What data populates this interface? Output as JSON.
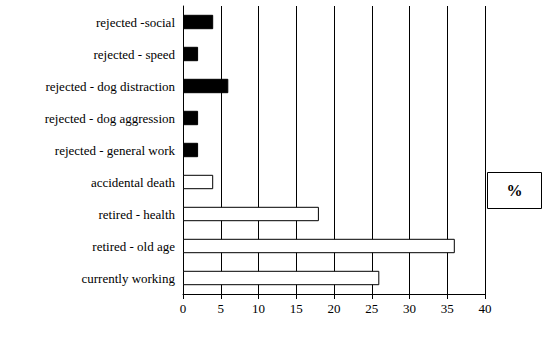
{
  "chart_data": {
    "type": "bar",
    "orientation": "horizontal",
    "categories": [
      "rejected -social",
      "rejected - speed",
      "rejected - dog distraction",
      "rejected - dog aggression",
      "rejected - general work",
      "accidental death",
      "retired - health",
      "retired - old age",
      "currently working"
    ],
    "values": [
      4,
      2,
      6,
      2,
      2,
      4,
      18,
      36,
      26
    ],
    "colors": [
      "#000000",
      "#000000",
      "#000000",
      "#000000",
      "#000000",
      "#ffffff",
      "#ffffff",
      "#ffffff",
      "#ffffff"
    ],
    "xlim": [
      0,
      40
    ],
    "xticks": [
      0,
      5,
      10,
      15,
      20,
      25,
      30,
      35,
      40
    ],
    "grid": true,
    "annotation": "%"
  }
}
